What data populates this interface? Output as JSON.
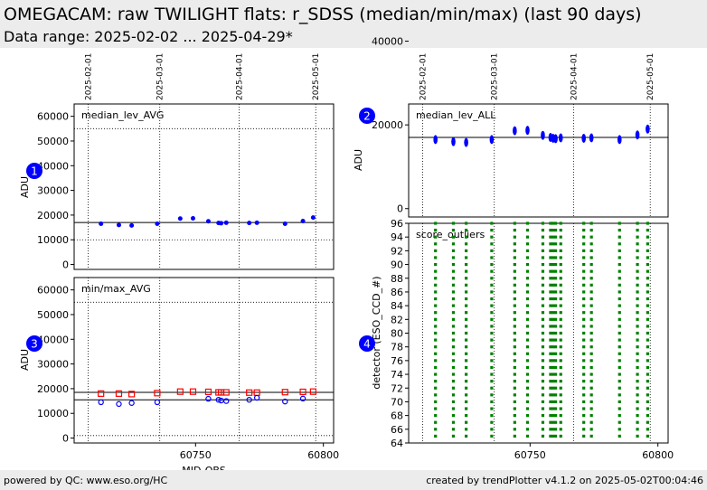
{
  "header": {
    "title": "OMEGACAM: raw TWILIGHT flats: r_SDSS (median/min/max) (last 90 days)",
    "subtitle": "Data range: 2025-02-02 ... 2025-04-29*"
  },
  "footer": {
    "left": "powered by QC: www.eso.org/HC",
    "right": "created by trendPlotter v4.1.2 on 2025-05-02T00:04:46"
  },
  "colors": {
    "median_points": "#0000ff",
    "max_points": "#ff0000",
    "min_points": "#0000ff",
    "score_points": "#008000",
    "badge": "#0000ff",
    "banner": "#ececec"
  },
  "chart_data": [
    {
      "id": "median_lev_AVG",
      "badge": "1",
      "type": "scatter",
      "title": "median_lev_AVG",
      "xlabel": "",
      "ylabel": "ADU",
      "xlim": [
        60702.5,
        60804
      ],
      "ylim": [
        -2000,
        65000
      ],
      "yticks": [
        0,
        10000,
        20000,
        30000,
        40000,
        50000,
        60000
      ],
      "xticks": [],
      "date_ticks": [
        {
          "x": 60708,
          "label": "2025-02-01"
        },
        {
          "x": 60736,
          "label": "2025-03-01"
        },
        {
          "x": 60767,
          "label": "2025-04-01"
        },
        {
          "x": 60797,
          "label": "2025-05-01"
        }
      ],
      "hlines": [
        {
          "y": 17000,
          "style": "solid"
        },
        {
          "y": 10000,
          "style": "dotted"
        },
        {
          "y": 55000,
          "style": "dotted"
        }
      ],
      "series": [
        {
          "marker": "filled-circle",
          "color": "#0000ff",
          "x": [
            60713,
            60720,
            60725,
            60735,
            60744,
            60749,
            60755,
            60759,
            60760,
            60762,
            60771,
            60774,
            60785,
            60792,
            60796
          ],
          "y": [
            16500,
            16000,
            15800,
            16500,
            18600,
            18700,
            17500,
            16800,
            16700,
            16900,
            16800,
            16900,
            16500,
            17600,
            19000
          ]
        }
      ]
    },
    {
      "id": "minmax_AVG",
      "badge": "3",
      "type": "scatter",
      "title": "min/max_AVG",
      "xlabel": "MJD-OBS",
      "ylabel": "ADU",
      "xlim": [
        60702.5,
        60804
      ],
      "ylim": [
        -2000,
        65000
      ],
      "yticks": [
        0,
        10000,
        20000,
        30000,
        40000,
        50000,
        60000
      ],
      "xticks": [
        60750,
        60800
      ],
      "date_ticks": [],
      "hlines": [
        {
          "y": 18500,
          "style": "solid"
        },
        {
          "y": 15500,
          "style": "solid"
        },
        {
          "y": 1000,
          "style": "dotted"
        },
        {
          "y": 55000,
          "style": "dotted"
        }
      ],
      "series": [
        {
          "marker": "open-square",
          "color": "#ff0000",
          "x": [
            60713,
            60720,
            60725,
            60735,
            60744,
            60749,
            60755,
            60759,
            60760,
            60762,
            60771,
            60774,
            60785,
            60792,
            60796
          ],
          "y": [
            18000,
            18000,
            17800,
            18200,
            18800,
            18800,
            18700,
            18500,
            18500,
            18500,
            18400,
            18400,
            18600,
            18700,
            18800
          ]
        },
        {
          "marker": "open-circle",
          "color": "#0000ff",
          "x": [
            60713,
            60720,
            60725,
            60735,
            60755,
            60759,
            60760,
            60762,
            60771,
            60774,
            60785,
            60792
          ],
          "y": [
            14500,
            13800,
            14200,
            14500,
            15900,
            15500,
            15200,
            15000,
            15500,
            16300,
            14800,
            16000
          ]
        }
      ]
    },
    {
      "id": "median_lev_ALL",
      "badge": "2",
      "type": "scatter",
      "title": "median_lev_ALL",
      "xlabel": "",
      "ylabel": "ADU",
      "xlim": [
        60702.5,
        60804
      ],
      "ylim": [
        -2000,
        25000
      ],
      "yticks": [
        0,
        20000,
        40000
      ],
      "ytick_labels": [
        "0",
        "20000",
        "40000"
      ],
      "date_ticks": [
        {
          "x": 60708,
          "label": "2025-02-01"
        },
        {
          "x": 60736,
          "label": "2025-03-01"
        },
        {
          "x": 60767,
          "label": "2025-04-01"
        },
        {
          "x": 60797,
          "label": "2025-05-01"
        }
      ],
      "hlines": [
        {
          "y": 17000,
          "style": "solid"
        }
      ],
      "series": [
        {
          "marker": "filled-cluster",
          "color": "#0000ff",
          "x": [
            60713,
            60720,
            60725,
            60735,
            60744,
            60749,
            60755,
            60758,
            60759,
            60760,
            60762,
            60771,
            60774,
            60785,
            60792,
            60796
          ],
          "y": [
            16500,
            16000,
            15800,
            16500,
            18600,
            18700,
            17500,
            17000,
            16800,
            16700,
            16900,
            16800,
            16900,
            16500,
            17600,
            19000
          ]
        }
      ]
    },
    {
      "id": "score_outliers",
      "badge": "4",
      "type": "scatter",
      "title": "score_outliers",
      "xlabel": "",
      "ylabel": "detector (ESO_CCD_#)",
      "xlim": [
        60702.5,
        60804
      ],
      "ylim": [
        64,
        96
      ],
      "yticks": [
        64,
        66,
        68,
        70,
        72,
        74,
        76,
        78,
        80,
        82,
        84,
        86,
        88,
        90,
        92,
        94,
        96
      ],
      "xticks": [
        60750,
        60800
      ],
      "date_ticks": [],
      "hlines": [],
      "series": [
        {
          "marker": "filled-square",
          "color": "#008000",
          "x": [
            60713,
            60720,
            60725,
            60735,
            60744,
            60749,
            60755,
            60758,
            60759,
            60760,
            60762,
            60771,
            60774,
            60785,
            60792,
            60796
          ],
          "detectors": "65-96"
        }
      ]
    }
  ]
}
